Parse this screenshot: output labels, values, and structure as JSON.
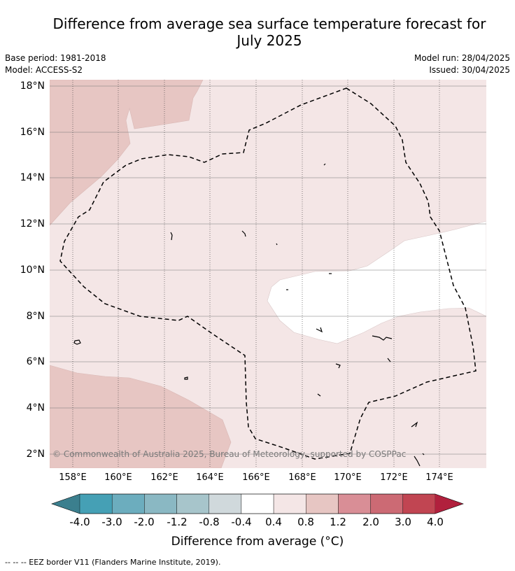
{
  "title": "Difference from average sea surface temperature forecast for July 2025",
  "title_line1": "Difference from average sea surface temperature forecast for",
  "title_line2": "July 2025",
  "meta": {
    "base_period": "Base period: 1981-2018",
    "model": "Model: ACCESS-S2",
    "model_run": "Model run: 28/04/2025",
    "issued": "Issued: 30/04/2025"
  },
  "map": {
    "lat_ticks": [
      "18°N",
      "16°N",
      "14°N",
      "12°N",
      "10°N",
      "8°N",
      "6°N",
      "4°N",
      "2°N"
    ],
    "lon_ticks": [
      "158°E",
      "160°E",
      "162°E",
      "164°E",
      "166°E",
      "168°E",
      "170°E",
      "172°E",
      "174°E"
    ],
    "copyright": "© Commonwealth of Australia 2025, Bureau of Meteorology, supported by COSPPac",
    "extent": {
      "lon_min": 157,
      "lon_max": 176,
      "lat_min": 1.4,
      "lat_max": 18.2
    }
  },
  "colorbar": {
    "title": "Difference from average (°C)",
    "labels": [
      "-4.0",
      "-3.0",
      "-2.0",
      "-1.2",
      "-0.8",
      "-0.4",
      "0.4",
      "0.8",
      "1.2",
      "2.0",
      "3.0",
      "4.0"
    ],
    "colors": {
      "below": "#3b7f8e",
      "bins": [
        "#45a0b5",
        "#6cadbe",
        "#8ab8c3",
        "#a7c5cb",
        "#d0d9dc",
        "#ffffff",
        "#f4e6e6",
        "#e7c6c3",
        "#d98e96",
        "#cc6a74",
        "#c14552"
      ],
      "above": "#b1203d"
    }
  },
  "footnote": "--  --  -- EEZ border V11 (Flanders Marine Institute, 2019)."
}
